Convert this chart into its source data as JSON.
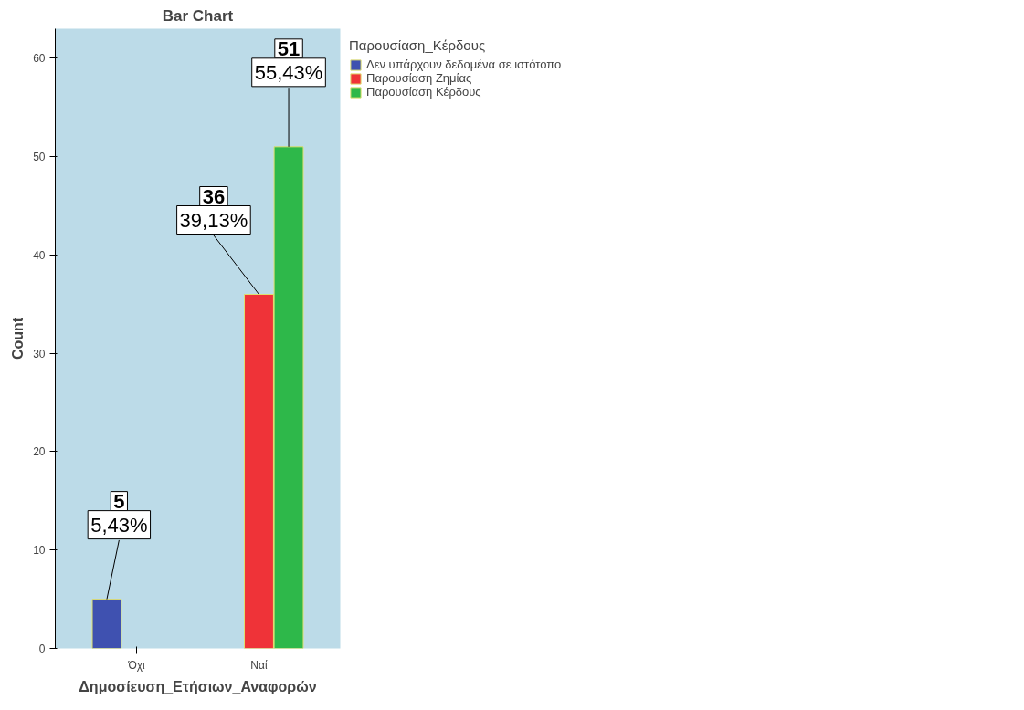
{
  "chart_data": {
    "type": "bar",
    "title": "Bar Chart",
    "xlabel": "Δημοσίευση_Ετήσιων_Αναφορών",
    "ylabel": "Count",
    "legend_title": "Παρουσίαση_Κέρδους",
    "categories": [
      "Όχι",
      "Ναί"
    ],
    "series": [
      {
        "name": "Δεν υπάρχουν δεδομένα σε ιστότοπο",
        "color": "#3f51b0",
        "values": [
          5,
          null
        ],
        "value_labels": [
          "5\n5,43%",
          null
        ]
      },
      {
        "name": "Παρουσίαση Ζημίας",
        "color": "#ef3338",
        "values": [
          null,
          36
        ],
        "value_labels": [
          null,
          "36\n39,13%"
        ]
      },
      {
        "name": "Παρουσίαση Κέρδους",
        "color": "#2eb84a",
        "values": [
          null,
          51
        ],
        "value_labels": [
          null,
          "51\n55,43%"
        ]
      }
    ],
    "ylim": [
      0,
      63
    ],
    "yticks": [
      0,
      10,
      20,
      30,
      40,
      50,
      60
    ],
    "grid": false,
    "legend": "top right"
  }
}
